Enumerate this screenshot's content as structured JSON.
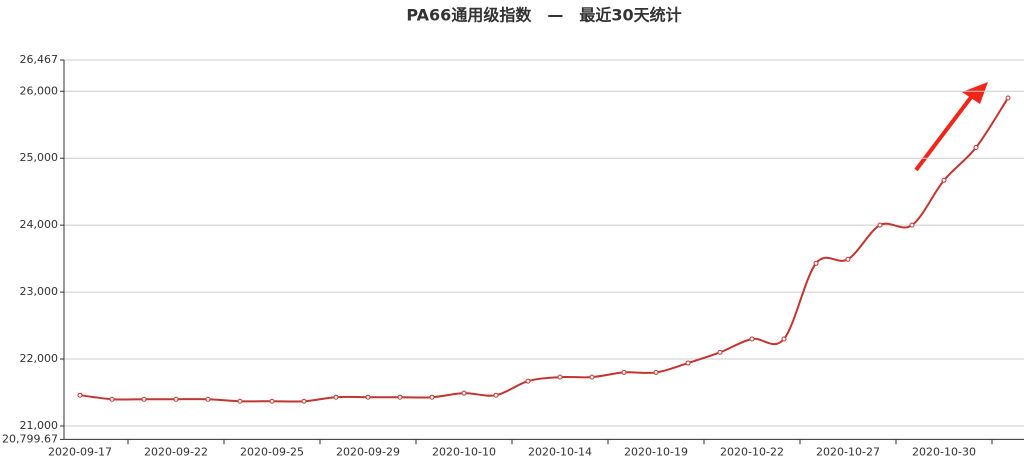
{
  "chart_data": {
    "type": "line",
    "title": "PA66通用级指数　—　最近30天统计",
    "categories": [
      "2020-09-17",
      null,
      null,
      "2020-09-22",
      null,
      null,
      "2020-09-25",
      null,
      null,
      "2020-09-29",
      null,
      null,
      "2020-10-10",
      null,
      null,
      "2020-10-14",
      null,
      null,
      "2020-10-19",
      null,
      null,
      "2020-10-22",
      null,
      null,
      "2020-10-27",
      null,
      null,
      "2020-10-30",
      null,
      null
    ],
    "values": [
      21460,
      21400,
      21400,
      21400,
      21400,
      21370,
      21370,
      21370,
      21430,
      21430,
      21430,
      21430,
      21490,
      21460,
      21670,
      21730,
      21730,
      21800,
      21800,
      21940,
      22100,
      22300,
      22300,
      23430,
      23490,
      24000,
      24000,
      24670,
      25160,
      25900
    ],
    "color": "#c23531",
    "ylim": [
      20799.67,
      26467
    ],
    "yticks": [
      {
        "value": 20799.67,
        "label": "20,799.67"
      },
      {
        "value": 21000,
        "label": "21,000"
      },
      {
        "value": 22000,
        "label": "22,000"
      },
      {
        "value": 23000,
        "label": "23,000"
      },
      {
        "value": 24000,
        "label": "24,000"
      },
      {
        "value": 25000,
        "label": "25,000"
      },
      {
        "value": 26000,
        "label": "26,000"
      },
      {
        "value": 26467,
        "label": "26,467"
      }
    ],
    "grid": true
  }
}
